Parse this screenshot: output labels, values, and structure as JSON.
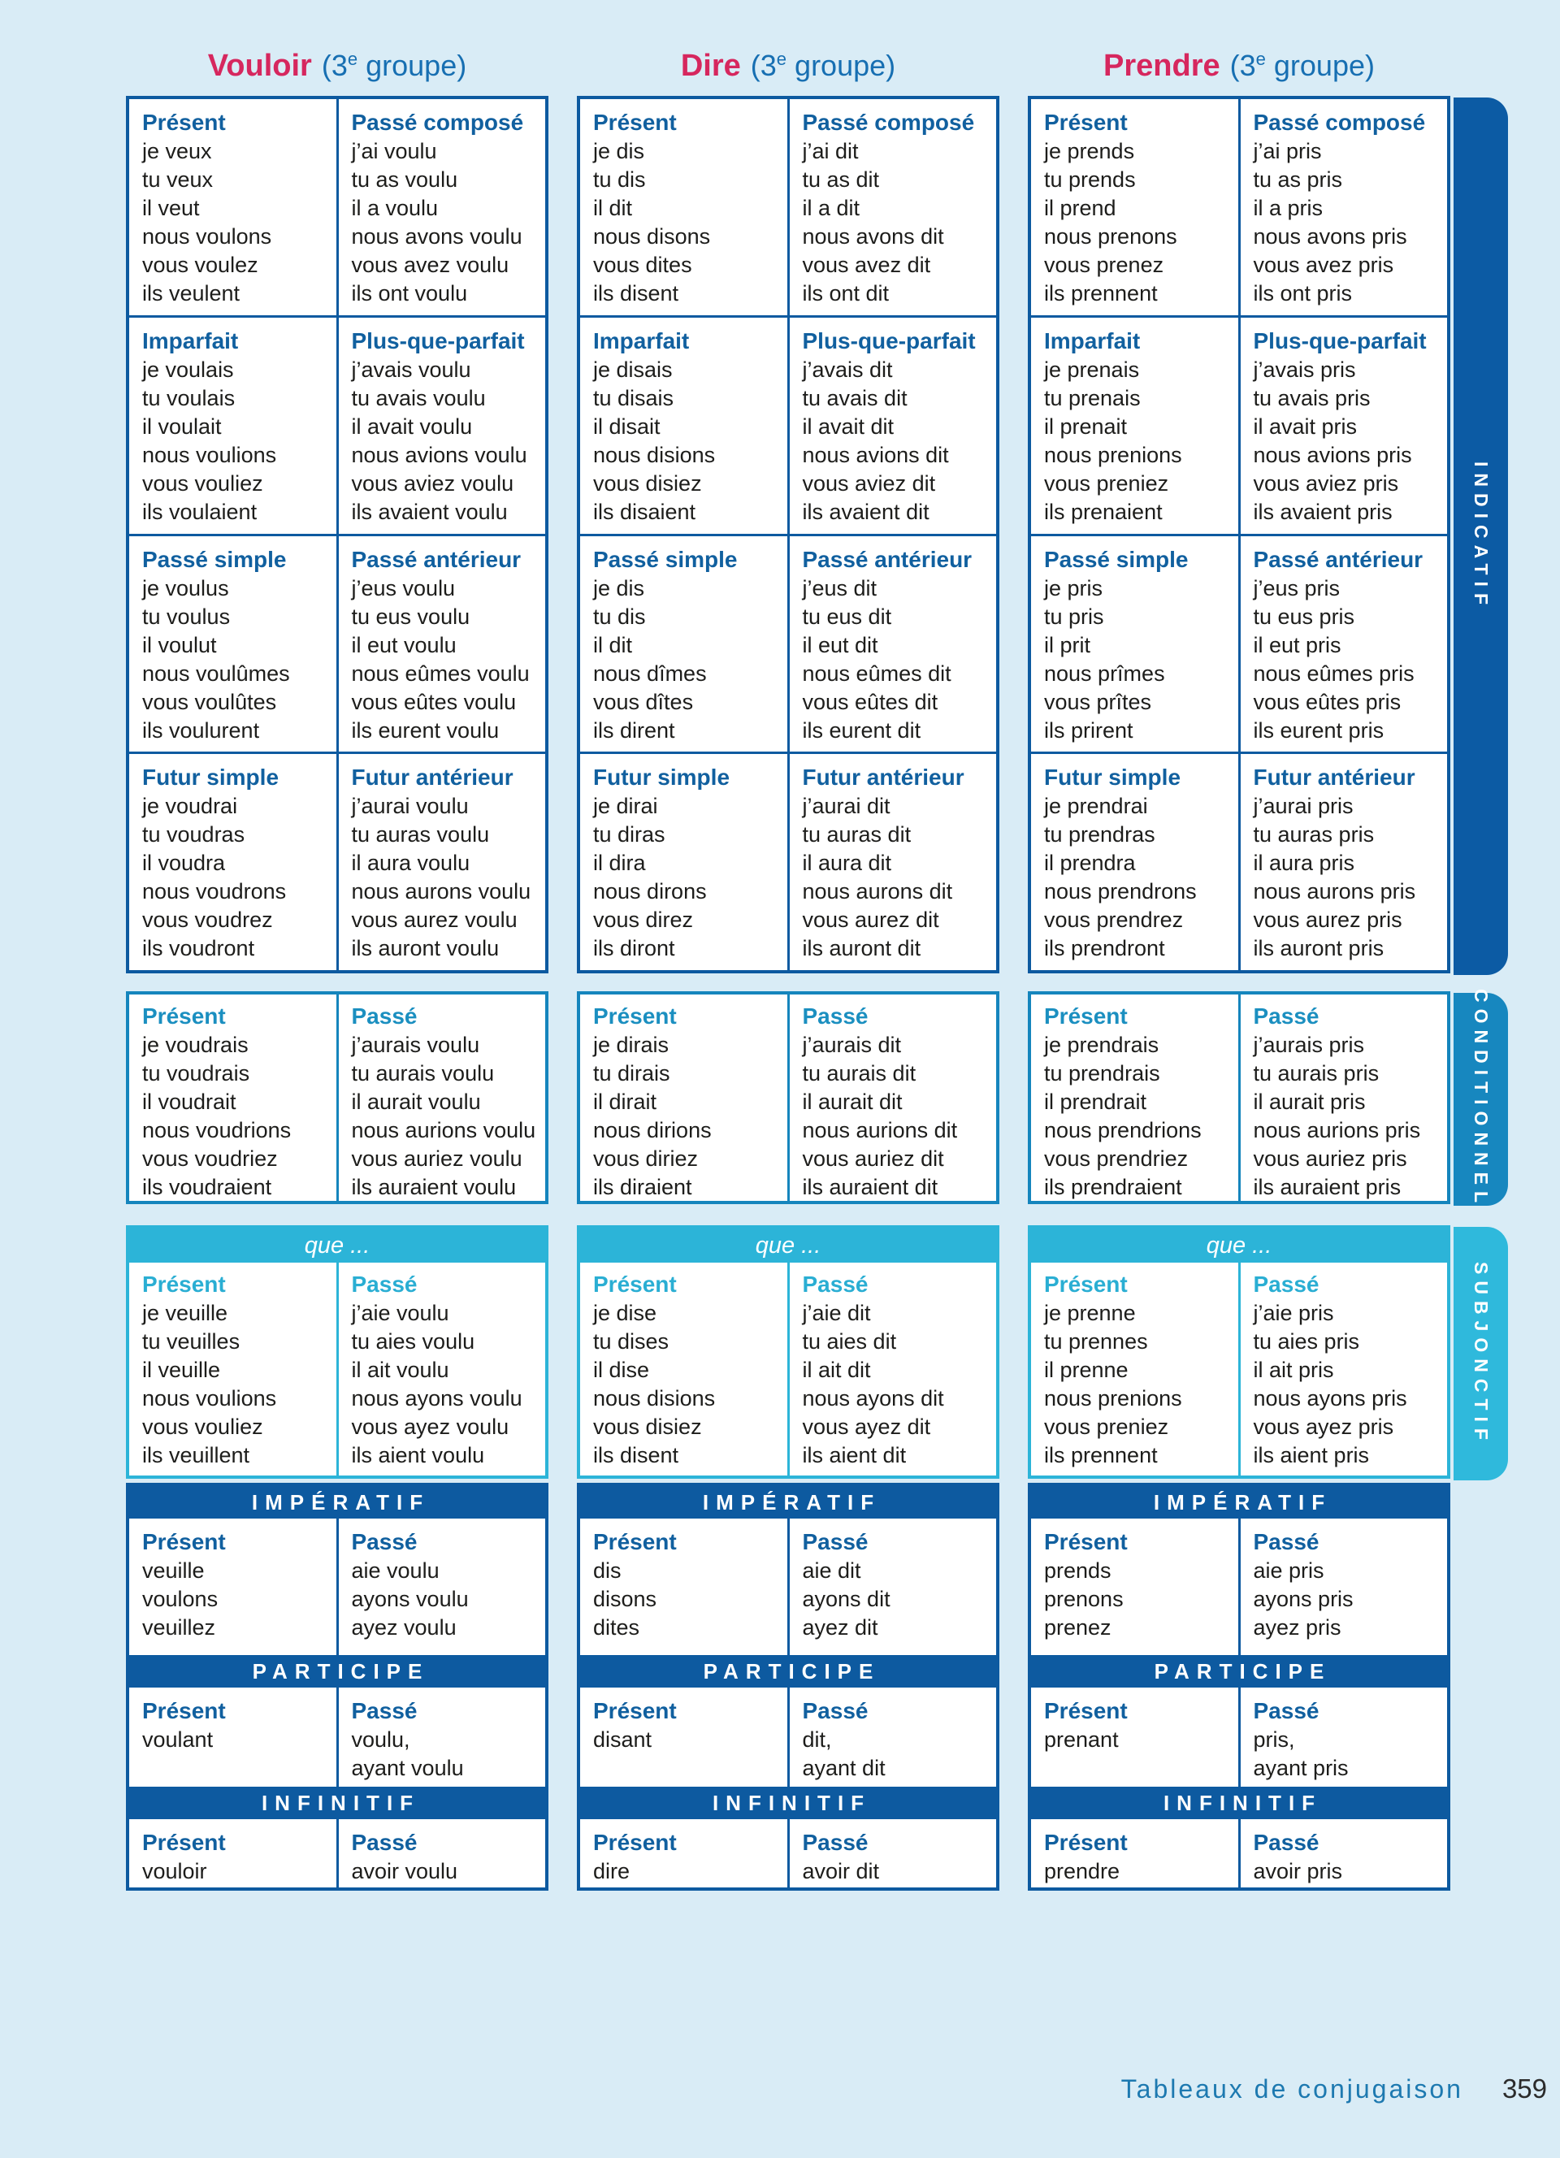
{
  "page": {
    "footer_label": "Tableaux de conjugaison",
    "page_number": "359"
  },
  "colors": {
    "page_background": "#d9ecf6",
    "indicatif_blue": "#0d5aa0",
    "conditionnel_blue": "#1787bf",
    "subjonctif_cyan": "#2fb9dc",
    "verb_name_pink": "#d6275e",
    "group_blue": "#176fb2",
    "body_text": "#1d1d1b"
  },
  "moods": {
    "indicatif": "INDICATIF",
    "conditionnel": "CONDITIONNEL",
    "subjonctif": "SUBJONCTIF",
    "imperatif": "IMPÉRATIF",
    "participe": "PARTICIPE",
    "infinitif": "INFINITIF",
    "que": "que ..."
  },
  "verbs": [
    {
      "name": "Vouloir",
      "group_open": "(3",
      "group_sup": "e",
      "group_rest": " groupe)",
      "indicatif": [
        {
          "left": {
            "label": "Présent",
            "forms": [
              "je veux",
              "tu veux",
              "il veut",
              "nous voulons",
              "vous voulez",
              "ils veulent"
            ]
          },
          "right": {
            "label": "Passé composé",
            "forms": [
              "j’ai voulu",
              "tu as voulu",
              "il a voulu",
              "nous avons voulu",
              "vous avez voulu",
              "ils ont voulu"
            ]
          }
        },
        {
          "left": {
            "label": "Imparfait",
            "forms": [
              "je voulais",
              "tu voulais",
              "il voulait",
              "nous voulions",
              "vous vouliez",
              "ils voulaient"
            ]
          },
          "right": {
            "label": "Plus-que-parfait",
            "forms": [
              "j’avais voulu",
              "tu avais voulu",
              "il avait voulu",
              "nous avions voulu",
              "vous aviez voulu",
              "ils avaient voulu"
            ]
          }
        },
        {
          "left": {
            "label": "Passé simple",
            "forms": [
              "je voulus",
              "tu voulus",
              "il voulut",
              "nous voulûmes",
              "vous voulûtes",
              "ils voulurent"
            ]
          },
          "right": {
            "label": "Passé antérieur",
            "forms": [
              "j’eus voulu",
              "tu eus voulu",
              "il eut voulu",
              "nous eûmes voulu",
              "vous eûtes voulu",
              "ils eurent voulu"
            ]
          }
        },
        {
          "left": {
            "label": "Futur simple",
            "forms": [
              "je voudrai",
              "tu voudras",
              "il voudra",
              "nous voudrons",
              "vous voudrez",
              "ils voudront"
            ]
          },
          "right": {
            "label": "Futur antérieur",
            "forms": [
              "j’aurai voulu",
              "tu auras voulu",
              "il aura voulu",
              "nous aurons voulu",
              "vous aurez voulu",
              "ils auront voulu"
            ]
          }
        }
      ],
      "conditionnel": {
        "left": {
          "label": "Présent",
          "forms": [
            "je voudrais",
            "tu voudrais",
            "il voudrait",
            "nous voudrions",
            "vous voudriez",
            "ils voudraient"
          ]
        },
        "right": {
          "label": "Passé",
          "forms": [
            "j’aurais voulu",
            "tu aurais voulu",
            "il aurait voulu",
            "nous aurions voulu",
            "vous auriez voulu",
            "ils auraient voulu"
          ]
        }
      },
      "subjonctif": {
        "left": {
          "label": "Présent",
          "forms": [
            "je veuille",
            "tu veuilles",
            "il veuille",
            "nous voulions",
            "vous vouliez",
            "ils veuillent"
          ]
        },
        "right": {
          "label": "Passé",
          "forms": [
            "j’aie voulu",
            "tu aies voulu",
            "il ait voulu",
            "nous ayons voulu",
            "vous ayez voulu",
            "ils aient voulu"
          ]
        }
      },
      "imperatif": {
        "left": {
          "label": "Présent",
          "forms": [
            "veuille",
            "voulons",
            "veuillez"
          ]
        },
        "right": {
          "label": "Passé",
          "forms": [
            "aie voulu",
            "ayons voulu",
            "ayez voulu"
          ]
        }
      },
      "participe": {
        "left": {
          "label": "Présent",
          "forms": [
            "voulant"
          ]
        },
        "right": {
          "label": "Passé",
          "forms": [
            "voulu,",
            "ayant voulu"
          ]
        }
      },
      "infinitif": {
        "left": {
          "label": "Présent",
          "forms": [
            "vouloir"
          ]
        },
        "right": {
          "label": "Passé",
          "forms": [
            "avoir voulu"
          ]
        }
      }
    },
    {
      "name": "Dire",
      "group_open": "(3",
      "group_sup": "e",
      "group_rest": " groupe)",
      "indicatif": [
        {
          "left": {
            "label": "Présent",
            "forms": [
              "je dis",
              "tu dis",
              "il dit",
              "nous disons",
              "vous dites",
              "ils disent"
            ]
          },
          "right": {
            "label": "Passé composé",
            "forms": [
              "j’ai dit",
              "tu as dit",
              "il a dit",
              "nous avons dit",
              "vous avez dit",
              "ils ont dit"
            ]
          }
        },
        {
          "left": {
            "label": "Imparfait",
            "forms": [
              "je disais",
              "tu disais",
              "il disait",
              "nous disions",
              "vous disiez",
              "ils disaient"
            ]
          },
          "right": {
            "label": "Plus-que-parfait",
            "forms": [
              "j’avais dit",
              "tu avais dit",
              "il avait dit",
              "nous avions dit",
              "vous aviez dit",
              "ils avaient dit"
            ]
          }
        },
        {
          "left": {
            "label": "Passé simple",
            "forms": [
              "je dis",
              "tu dis",
              "il dit",
              "nous dîmes",
              "vous dîtes",
              "ils dirent"
            ]
          },
          "right": {
            "label": "Passé antérieur",
            "forms": [
              "j’eus dit",
              "tu eus dit",
              "il eut dit",
              "nous eûmes dit",
              "vous eûtes dit",
              "ils eurent dit"
            ]
          }
        },
        {
          "left": {
            "label": "Futur simple",
            "forms": [
              "je dirai",
              "tu diras",
              "il dira",
              "nous dirons",
              "vous direz",
              "ils diront"
            ]
          },
          "right": {
            "label": "Futur antérieur",
            "forms": [
              "j’aurai dit",
              "tu auras dit",
              "il aura dit",
              "nous aurons dit",
              "vous aurez dit",
              "ils auront dit"
            ]
          }
        }
      ],
      "conditionnel": {
        "left": {
          "label": "Présent",
          "forms": [
            "je dirais",
            "tu dirais",
            "il dirait",
            "nous dirions",
            "vous diriez",
            "ils diraient"
          ]
        },
        "right": {
          "label": "Passé",
          "forms": [
            "j’aurais dit",
            "tu aurais dit",
            "il aurait dit",
            "nous aurions dit",
            "vous auriez dit",
            "ils auraient dit"
          ]
        }
      },
      "subjonctif": {
        "left": {
          "label": "Présent",
          "forms": [
            "je dise",
            "tu dises",
            "il dise",
            "nous disions",
            "vous disiez",
            "ils disent"
          ]
        },
        "right": {
          "label": "Passé",
          "forms": [
            "j’aie dit",
            "tu aies dit",
            "il ait dit",
            "nous ayons dit",
            "vous ayez dit",
            "ils aient dit"
          ]
        }
      },
      "imperatif": {
        "left": {
          "label": "Présent",
          "forms": [
            "dis",
            "disons",
            "dites"
          ]
        },
        "right": {
          "label": "Passé",
          "forms": [
            "aie dit",
            "ayons dit",
            "ayez dit"
          ]
        }
      },
      "participe": {
        "left": {
          "label": "Présent",
          "forms": [
            "disant"
          ]
        },
        "right": {
          "label": "Passé",
          "forms": [
            "dit,",
            "ayant dit"
          ]
        }
      },
      "infinitif": {
        "left": {
          "label": "Présent",
          "forms": [
            "dire"
          ]
        },
        "right": {
          "label": "Passé",
          "forms": [
            "avoir dit"
          ]
        }
      }
    },
    {
      "name": "Prendre",
      "group_open": "(3",
      "group_sup": "e",
      "group_rest": " groupe)",
      "indicatif": [
        {
          "left": {
            "label": "Présent",
            "forms": [
              "je prends",
              "tu prends",
              "il prend",
              "nous prenons",
              "vous prenez",
              "ils prennent"
            ]
          },
          "right": {
            "label": "Passé composé",
            "forms": [
              "j’ai pris",
              "tu as pris",
              "il a pris",
              "nous avons pris",
              "vous avez pris",
              "ils ont pris"
            ]
          }
        },
        {
          "left": {
            "label": "Imparfait",
            "forms": [
              "je prenais",
              "tu prenais",
              "il prenait",
              "nous prenions",
              "vous preniez",
              "ils prenaient"
            ]
          },
          "right": {
            "label": "Plus-que-parfait",
            "forms": [
              "j’avais pris",
              "tu avais pris",
              "il avait pris",
              "nous avions pris",
              "vous aviez pris",
              "ils avaient pris"
            ]
          }
        },
        {
          "left": {
            "label": "Passé simple",
            "forms": [
              "je pris",
              "tu pris",
              "il prit",
              "nous prîmes",
              "vous prîtes",
              "ils prirent"
            ]
          },
          "right": {
            "label": "Passé antérieur",
            "forms": [
              "j’eus pris",
              "tu eus pris",
              "il eut pris",
              "nous eûmes pris",
              "vous eûtes pris",
              "ils eurent pris"
            ]
          }
        },
        {
          "left": {
            "label": "Futur simple",
            "forms": [
              "je prendrai",
              "tu prendras",
              "il prendra",
              "nous prendrons",
              "vous prendrez",
              "ils prendront"
            ]
          },
          "right": {
            "label": "Futur antérieur",
            "forms": [
              "j’aurai pris",
              "tu auras pris",
              "il aura pris",
              "nous aurons pris",
              "vous aurez pris",
              "ils auront pris"
            ]
          }
        }
      ],
      "conditionnel": {
        "left": {
          "label": "Présent",
          "forms": [
            "je prendrais",
            "tu prendrais",
            "il prendrait",
            "nous prendrions",
            "vous prendriez",
            "ils prendraient"
          ]
        },
        "right": {
          "label": "Passé",
          "forms": [
            "j’aurais pris",
            "tu aurais pris",
            "il aurait pris",
            "nous aurions pris",
            "vous auriez pris",
            "ils auraient pris"
          ]
        }
      },
      "subjonctif": {
        "left": {
          "label": "Présent",
          "forms": [
            "je prenne",
            "tu prennes",
            "il prenne",
            "nous prenions",
            "vous preniez",
            "ils prennent"
          ]
        },
        "right": {
          "label": "Passé",
          "forms": [
            "j’aie pris",
            "tu aies pris",
            "il ait pris",
            "nous ayons pris",
            "vous ayez pris",
            "ils aient pris"
          ]
        }
      },
      "imperatif": {
        "left": {
          "label": "Présent",
          "forms": [
            "prends",
            "prenons",
            "prenez"
          ]
        },
        "right": {
          "label": "Passé",
          "forms": [
            "aie pris",
            "ayons pris",
            "ayez pris"
          ]
        }
      },
      "participe": {
        "left": {
          "label": "Présent",
          "forms": [
            "prenant"
          ]
        },
        "right": {
          "label": "Passé",
          "forms": [
            "pris,",
            "ayant pris"
          ]
        }
      },
      "infinitif": {
        "left": {
          "label": "Présent",
          "forms": [
            "prendre"
          ]
        },
        "right": {
          "label": "Passé",
          "forms": [
            "avoir pris"
          ]
        }
      }
    }
  ]
}
